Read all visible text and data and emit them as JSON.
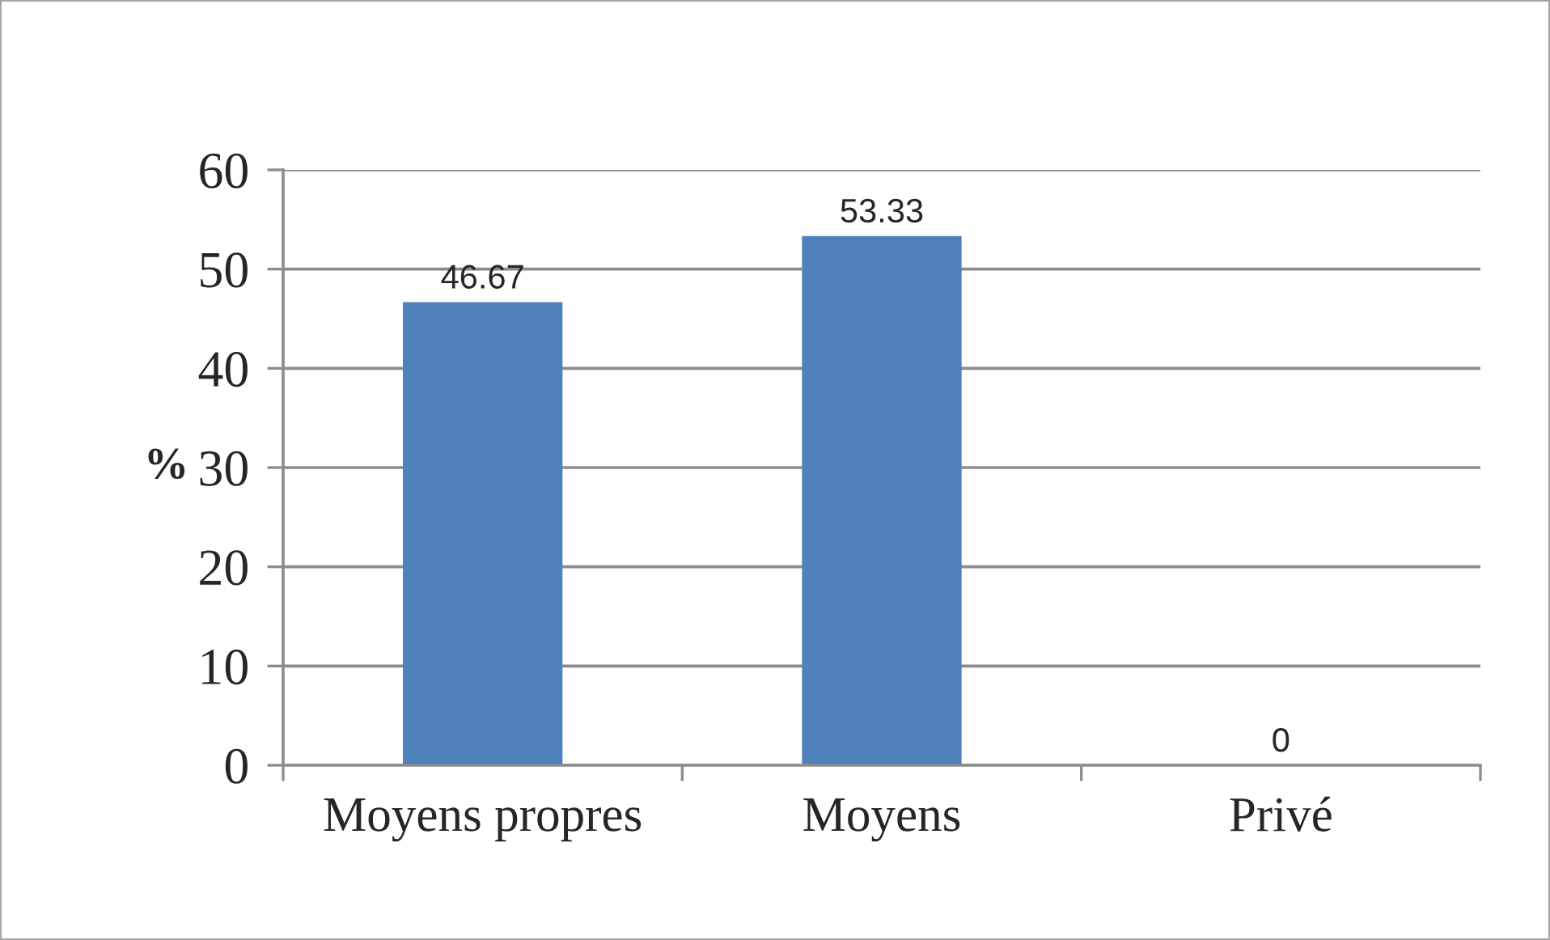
{
  "chart_data": {
    "type": "bar",
    "ylabel": "%",
    "categories": [
      "Moyens propres",
      "Moyens",
      "Privé"
    ],
    "values": [
      46.67,
      53.33,
      0
    ],
    "color": "#4f81bd",
    "ylim": [
      0,
      60
    ],
    "yticks": [
      0,
      10,
      20,
      30,
      40,
      50,
      60
    ],
    "grid": "y",
    "data_labels": true
  }
}
